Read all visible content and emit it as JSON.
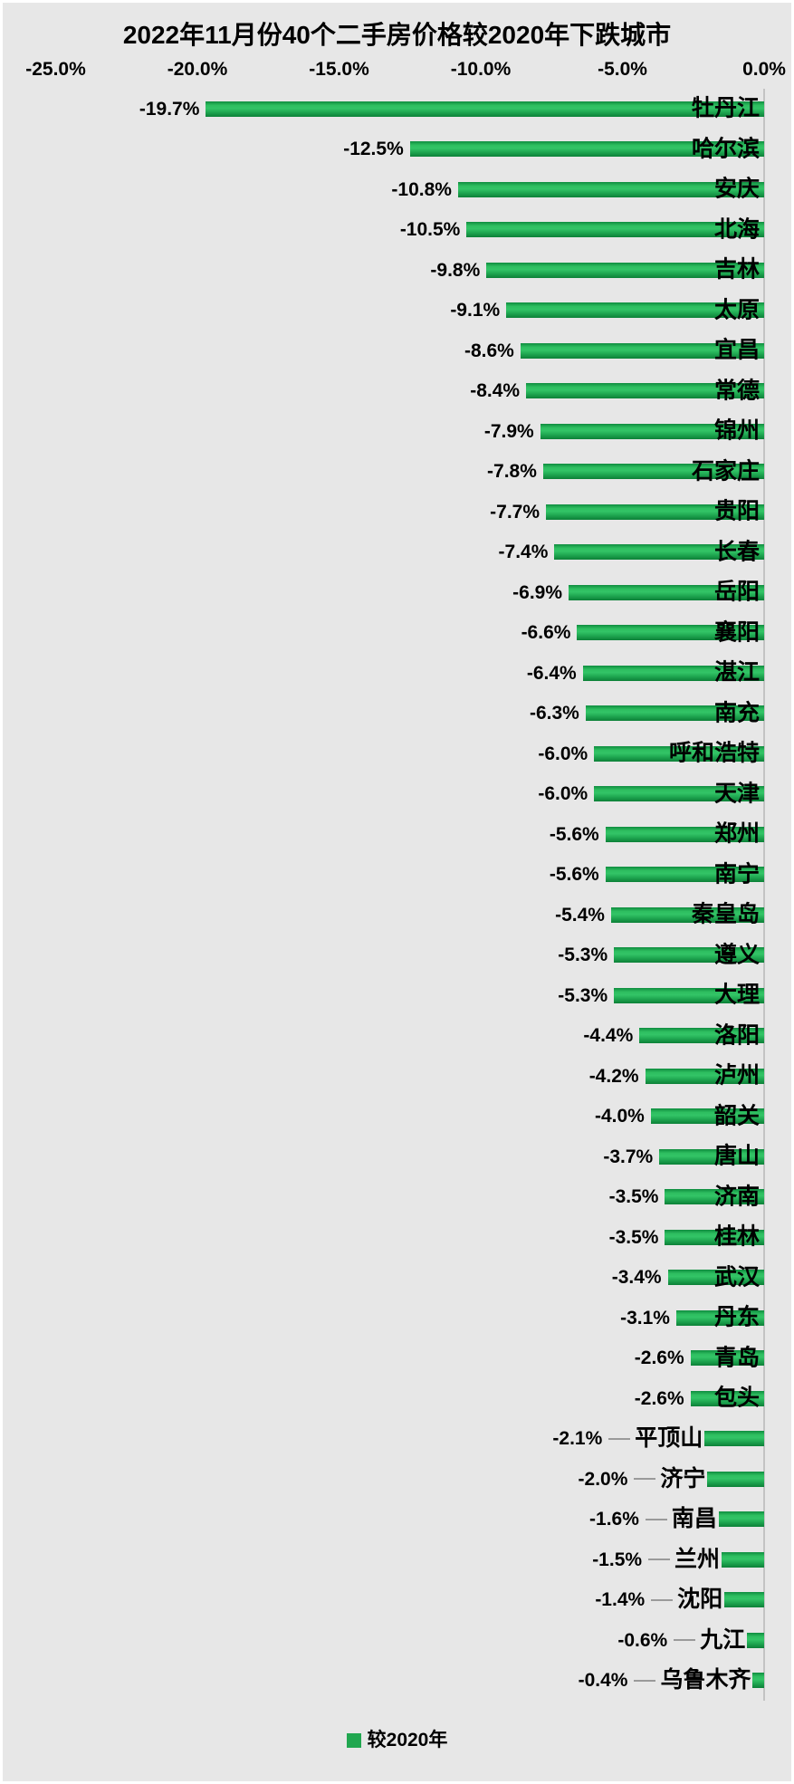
{
  "title": "2022年11月份40个二手房价格较2020年下跌城市",
  "legend": {
    "label": "较2020年"
  },
  "colors": {
    "bar_green": "#21a750",
    "background": "#e7e7e7",
    "zero_axis_line": "#c3c3c3",
    "leader_line": "#9a9a9a",
    "text": "#000000"
  },
  "x_axis": {
    "ticks": [
      {
        "label": "-25.0%",
        "value": -25
      },
      {
        "label": "-20.0%",
        "value": -20
      },
      {
        "label": "-15.0%",
        "value": -15
      },
      {
        "label": "-10.0%",
        "value": -10
      },
      {
        "label": "-5.0%",
        "value": -5
      },
      {
        "label": "0.0%",
        "value": 0
      }
    ]
  },
  "chart_data": {
    "type": "bar",
    "orientation": "horizontal",
    "title": "2022年11月份40个二手房价格较2020年下跌城市",
    "xlabel": "",
    "ylabel": "",
    "xlim": [
      -25,
      0
    ],
    "grid": false,
    "legend_position": "bottom-center",
    "legend_entries": [
      "较2020年"
    ],
    "categories": [
      "牡丹江",
      "哈尔滨",
      "安庆",
      "北海",
      "吉林",
      "太原",
      "宜昌",
      "常德",
      "锦州",
      "石家庄",
      "贵阳",
      "长春",
      "岳阳",
      "襄阳",
      "湛江",
      "南充",
      "呼和浩特",
      "天津",
      "郑州",
      "南宁",
      "秦皇岛",
      "遵义",
      "大理",
      "洛阳",
      "泸州",
      "韶关",
      "唐山",
      "济南",
      "桂林",
      "武汉",
      "丹东",
      "青岛",
      "包头",
      "平顶山",
      "济宁",
      "南昌",
      "兰州",
      "沈阳",
      "九江",
      "乌鲁木齐"
    ],
    "values": [
      -19.7,
      -12.5,
      -10.8,
      -10.5,
      -9.8,
      -9.1,
      -8.6,
      -8.4,
      -7.9,
      -7.8,
      -7.7,
      -7.4,
      -6.9,
      -6.6,
      -6.4,
      -6.3,
      -6.0,
      -6.0,
      -5.6,
      -5.6,
      -5.4,
      -5.3,
      -5.3,
      -4.4,
      -4.2,
      -4.0,
      -3.7,
      -3.5,
      -3.5,
      -3.4,
      -3.1,
      -2.6,
      -2.6,
      -2.1,
      -2.0,
      -1.6,
      -1.5,
      -1.4,
      -0.6,
      -0.4
    ],
    "value_labels": [
      "-19.7%",
      "-12.5%",
      "-10.8%",
      "-10.5%",
      "-9.8%",
      "-9.1%",
      "-8.6%",
      "-8.4%",
      "-7.9%",
      "-7.8%",
      "-7.7%",
      "-7.4%",
      "-6.9%",
      "-6.6%",
      "-6.4%",
      "-6.3%",
      "-6.0%",
      "-6.0%",
      "-5.6%",
      "-5.6%",
      "-5.4%",
      "-5.3%",
      "-5.3%",
      "-4.4%",
      "-4.2%",
      "-4.0%",
      "-3.7%",
      "-3.5%",
      "-3.5%",
      "-3.4%",
      "-3.1%",
      "-2.6%",
      "-2.6%",
      "-2.1%",
      "-2.0%",
      "-1.6%",
      "-1.5%",
      "-1.4%",
      "-0.6%",
      "-0.4%"
    ]
  }
}
